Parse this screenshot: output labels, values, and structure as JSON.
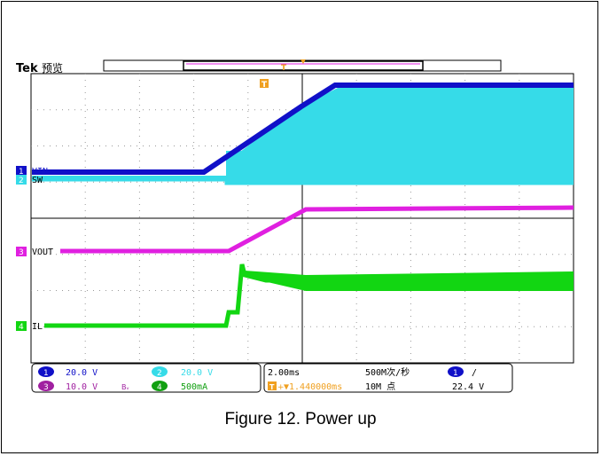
{
  "brand": "Tek",
  "mode": "预览",
  "trigger_marker": "T",
  "channels": [
    {
      "num": "1",
      "label": "VIN",
      "scale": "20.0 V",
      "color": "#1010c8"
    },
    {
      "num": "2",
      "label": "SW",
      "scale": "20.0 V",
      "color": "#36dbe8"
    },
    {
      "num": "3",
      "label": "VOUT",
      "scale": "10.0 V",
      "color": "#e020e0"
    },
    {
      "num": "4",
      "label": "IL",
      "scale": "500mA",
      "color": "#12d612"
    }
  ],
  "bw_mark": "Bᵥ",
  "timebase": "2.00ms",
  "sample_rate": "500M次/秒",
  "trigger_position": "▼1.440000ms",
  "record_length": "10M 点",
  "trigger_source": "1",
  "trigger_slope": "/",
  "trigger_level": "22.4 V",
  "caption": "Figure 12. Power up"
}
